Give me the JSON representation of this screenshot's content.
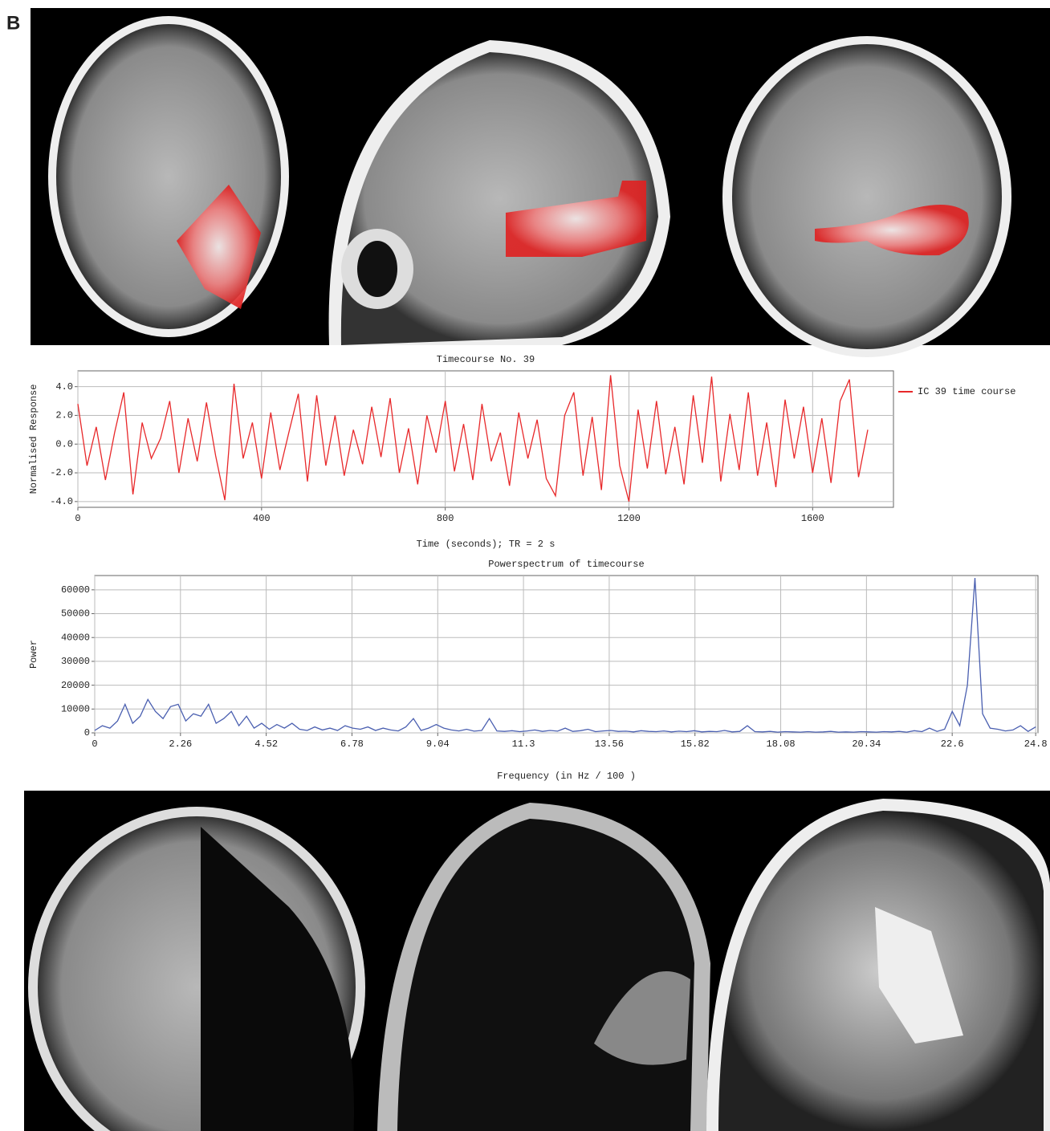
{
  "panel_label": "B",
  "chart_data": [
    {
      "type": "line",
      "title": "Timecourse No. 39",
      "x_label": "Time (seconds); TR = 2 s",
      "y_label": "Normalised Response",
      "x": [
        0,
        20,
        40,
        60,
        80,
        100,
        120,
        140,
        160,
        180,
        200,
        220,
        240,
        260,
        280,
        300,
        320,
        340,
        360,
        380,
        400,
        420,
        440,
        460,
        480,
        500,
        520,
        540,
        560,
        580,
        600,
        620,
        640,
        660,
        680,
        700,
        720,
        740,
        760,
        780,
        800,
        820,
        840,
        860,
        880,
        900,
        920,
        940,
        960,
        980,
        1000,
        1020,
        1040,
        1060,
        1080,
        1100,
        1120,
        1140,
        1160,
        1180,
        1200,
        1220,
        1240,
        1260,
        1280,
        1300,
        1320,
        1340,
        1360,
        1380,
        1400,
        1420,
        1440,
        1460,
        1480,
        1500,
        1520,
        1540,
        1560,
        1580,
        1600,
        1620,
        1640,
        1660,
        1680,
        1700,
        1720
      ],
      "series": [
        {
          "name": "IC 39 time course",
          "color": "#e8282a",
          "values": [
            2.8,
            -1.5,
            1.2,
            -2.5,
            0.8,
            3.6,
            -3.5,
            1.5,
            -1.0,
            0.4,
            3.0,
            -2.0,
            1.8,
            -1.2,
            2.9,
            -0.8,
            -3.9,
            4.2,
            -1.0,
            1.5,
            -2.4,
            2.2,
            -1.8,
            0.9,
            3.5,
            -2.6,
            3.4,
            -1.5,
            2.0,
            -2.2,
            1.0,
            -1.4,
            2.6,
            -0.9,
            3.2,
            -2.0,
            1.1,
            -2.8,
            2.0,
            -0.6,
            3.0,
            -1.9,
            1.4,
            -2.5,
            2.8,
            -1.2,
            0.8,
            -2.9,
            2.2,
            -1.0,
            1.7,
            -2.4,
            -3.6,
            2.0,
            3.6,
            -2.2,
            1.9,
            -3.2,
            4.8,
            -1.5,
            -4.0,
            2.4,
            -1.7,
            3.0,
            -2.1,
            1.2,
            -2.8,
            3.4,
            -1.3,
            4.7,
            -2.6,
            2.1,
            -1.8,
            3.6,
            -2.2,
            1.5,
            -3.0,
            3.1,
            -1.0,
            2.6,
            -2.0,
            1.8,
            -2.7,
            3.0,
            4.5,
            -2.3,
            1.0
          ]
        }
      ],
      "xlim": [
        0,
        1776
      ],
      "xticks": [
        0,
        400,
        800,
        1200,
        1600
      ],
      "ylim": [
        -4.4,
        5.1
      ],
      "yticks": [
        {
          "value": -4,
          "label": "-4.0"
        },
        {
          "value": -2,
          "label": "-2.0"
        },
        {
          "value": 0,
          "label": "0.0"
        },
        {
          "value": 2,
          "label": "2.0"
        },
        {
          "value": 4,
          "label": "4.0"
        }
      ],
      "grid": true,
      "legend": "right"
    },
    {
      "type": "line",
      "title": "Powerspectrum of timecourse",
      "x_label": "Frequency (in Hz / 100 )",
      "y_label": "Power",
      "color": "#4a5fb0",
      "x": [
        0,
        0.2,
        0.4,
        0.6,
        0.8,
        1.0,
        1.2,
        1.4,
        1.6,
        1.8,
        2.0,
        2.2,
        2.4,
        2.6,
        2.8,
        3.0,
        3.2,
        3.4,
        3.6,
        3.8,
        4.0,
        4.2,
        4.4,
        4.6,
        4.8,
        5.0,
        5.2,
        5.4,
        5.6,
        5.8,
        6.0,
        6.2,
        6.4,
        6.6,
        6.8,
        7.0,
        7.2,
        7.4,
        7.6,
        7.8,
        8.0,
        8.2,
        8.4,
        8.6,
        8.8,
        9.0,
        9.2,
        9.4,
        9.6,
        9.8,
        10.0,
        10.2,
        10.4,
        10.6,
        10.8,
        11.0,
        11.2,
        11.4,
        11.6,
        11.8,
        12.0,
        12.2,
        12.4,
        12.6,
        12.8,
        13.0,
        13.2,
        13.4,
        13.6,
        13.8,
        14.0,
        14.2,
        14.4,
        14.6,
        14.8,
        15.0,
        15.2,
        15.4,
        15.6,
        15.8,
        16.0,
        16.2,
        16.4,
        16.6,
        16.8,
        17.0,
        17.2,
        17.4,
        17.6,
        17.8,
        18.0,
        18.2,
        18.4,
        18.6,
        18.8,
        19.0,
        19.2,
        19.4,
        19.6,
        19.8,
        20.0,
        20.2,
        20.4,
        20.6,
        20.8,
        21.0,
        21.2,
        21.4,
        21.6,
        21.8,
        22.0,
        22.2,
        22.4,
        22.6,
        22.8,
        23.0,
        23.2,
        23.4,
        23.6,
        23.8,
        24.0,
        24.2,
        24.4,
        24.6,
        24.8
      ],
      "values": [
        1000,
        3000,
        2000,
        5000,
        12000,
        4000,
        7000,
        14000,
        9000,
        6000,
        11000,
        12000,
        5000,
        8000,
        7000,
        12000,
        4000,
        6000,
        9000,
        3000,
        7000,
        2000,
        4000,
        1500,
        3500,
        2000,
        4000,
        1500,
        1000,
        2500,
        1200,
        2000,
        1000,
        3000,
        2000,
        1500,
        2500,
        1000,
        2000,
        1200,
        800,
        2500,
        6000,
        1000,
        2000,
        3500,
        2000,
        1200,
        800,
        1500,
        700,
        1000,
        6000,
        800,
        600,
        900,
        500,
        800,
        1200,
        600,
        1000,
        700,
        2000,
        600,
        900,
        1500,
        500,
        800,
        1000,
        600,
        700,
        400,
        900,
        600,
        500,
        800,
        400,
        700,
        500,
        900,
        400,
        600,
        500,
        1000,
        400,
        600,
        3000,
        500,
        400,
        600,
        300,
        500,
        400,
        300,
        500,
        300,
        400,
        600,
        300,
        400,
        300,
        500,
        400,
        300,
        500,
        400,
        600,
        300,
        900,
        500,
        2000,
        600,
        1500,
        9000,
        3000,
        20000,
        65000,
        8000,
        2000,
        1500,
        800,
        1200,
        3000,
        600,
        2500
      ],
      "xlim": [
        0,
        24.86
      ],
      "xticks": [
        0,
        2.26,
        4.52,
        6.78,
        9.04,
        11.3,
        13.56,
        15.82,
        18.08,
        20.34,
        22.6,
        24.8
      ],
      "ylim": [
        0,
        66000
      ],
      "yticks": [
        0,
        10000,
        20000,
        30000,
        40000,
        50000,
        60000
      ],
      "grid": true
    }
  ]
}
